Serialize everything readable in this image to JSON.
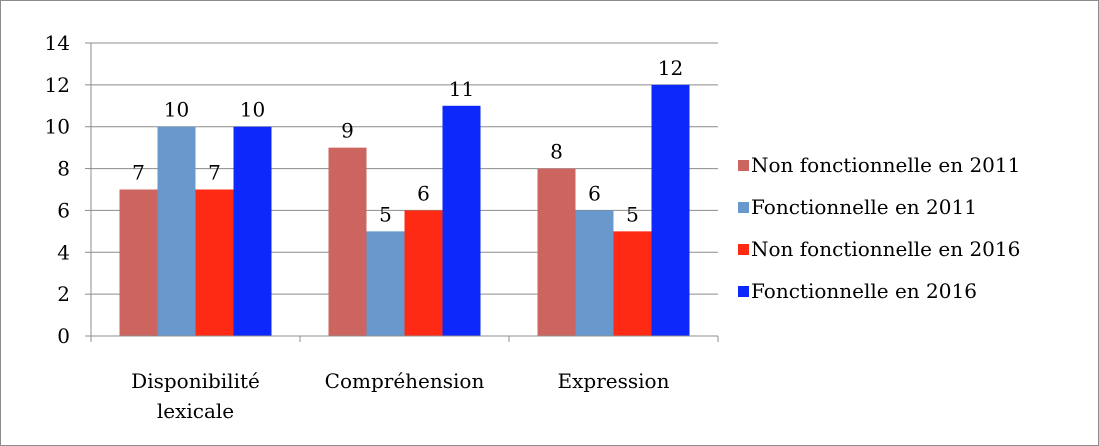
{
  "chart_data": {
    "type": "bar",
    "categories": [
      "Disponibilité lexicale",
      "Compréhension",
      "Expression"
    ],
    "category_lines": [
      [
        "Disponibilité",
        "lexicale"
      ],
      [
        "Compréhension"
      ],
      [
        "Expression"
      ]
    ],
    "series": [
      {
        "name": "Non fonctionnelle en 2011",
        "color": "#cc6560",
        "values": [
          7,
          9,
          8
        ]
      },
      {
        "name": "Fonctionnelle en 2011",
        "color": "#6898cc",
        "values": [
          10,
          5,
          6
        ]
      },
      {
        "name": "Non fonctionnelle en 2016",
        "color": "#ff2a14",
        "values": [
          7,
          6,
          5
        ]
      },
      {
        "name": "Fonctionnelle en 2016",
        "color": "#0d28fb",
        "values": [
          10,
          11,
          12
        ]
      }
    ],
    "ylim": [
      0,
      14
    ],
    "yticks": [
      "0",
      "2",
      "4",
      "6",
      "8",
      "10",
      "12",
      "14"
    ],
    "grid": true,
    "data_labels": true,
    "legend_position": "right",
    "title": "",
    "xlabel": "",
    "ylabel": ""
  }
}
